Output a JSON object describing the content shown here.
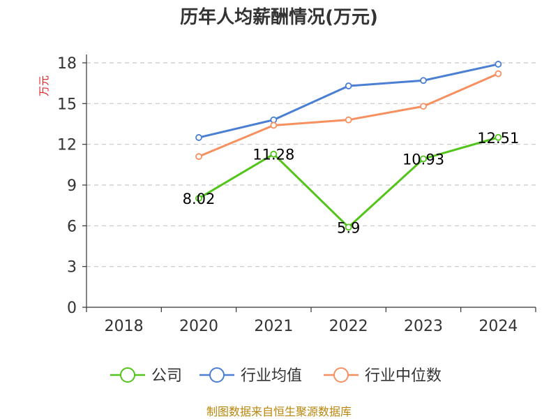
{
  "chart_data": {
    "type": "line",
    "title": "历年人均薪酬情况(万元)",
    "ylabel": "万元",
    "xlabel": "",
    "categories": [
      "2018",
      "2020",
      "2021",
      "2022",
      "2023",
      "2024"
    ],
    "ylim": [
      0,
      18
    ],
    "yticks": [
      0,
      3,
      6,
      9,
      12,
      15,
      18
    ],
    "grid": true,
    "legend_position": "bottom",
    "series": [
      {
        "name": "公司",
        "color": "#52c41a",
        "show_labels": true,
        "labels": [
          "",
          "8.02",
          "11.28",
          "5.9",
          "10.93",
          "12.51"
        ],
        "values": [
          null,
          8.02,
          11.28,
          5.9,
          10.93,
          12.51
        ]
      },
      {
        "name": "行业均值",
        "color": "#4a7fd4",
        "show_labels": false,
        "values": [
          null,
          12.5,
          13.8,
          16.3,
          16.7,
          17.9
        ]
      },
      {
        "name": "行业中位数",
        "color": "#f79060",
        "show_labels": false,
        "values": [
          null,
          11.1,
          13.4,
          13.8,
          14.8,
          17.2
        ]
      }
    ]
  },
  "source": "制图数据来自恒生聚源数据库"
}
